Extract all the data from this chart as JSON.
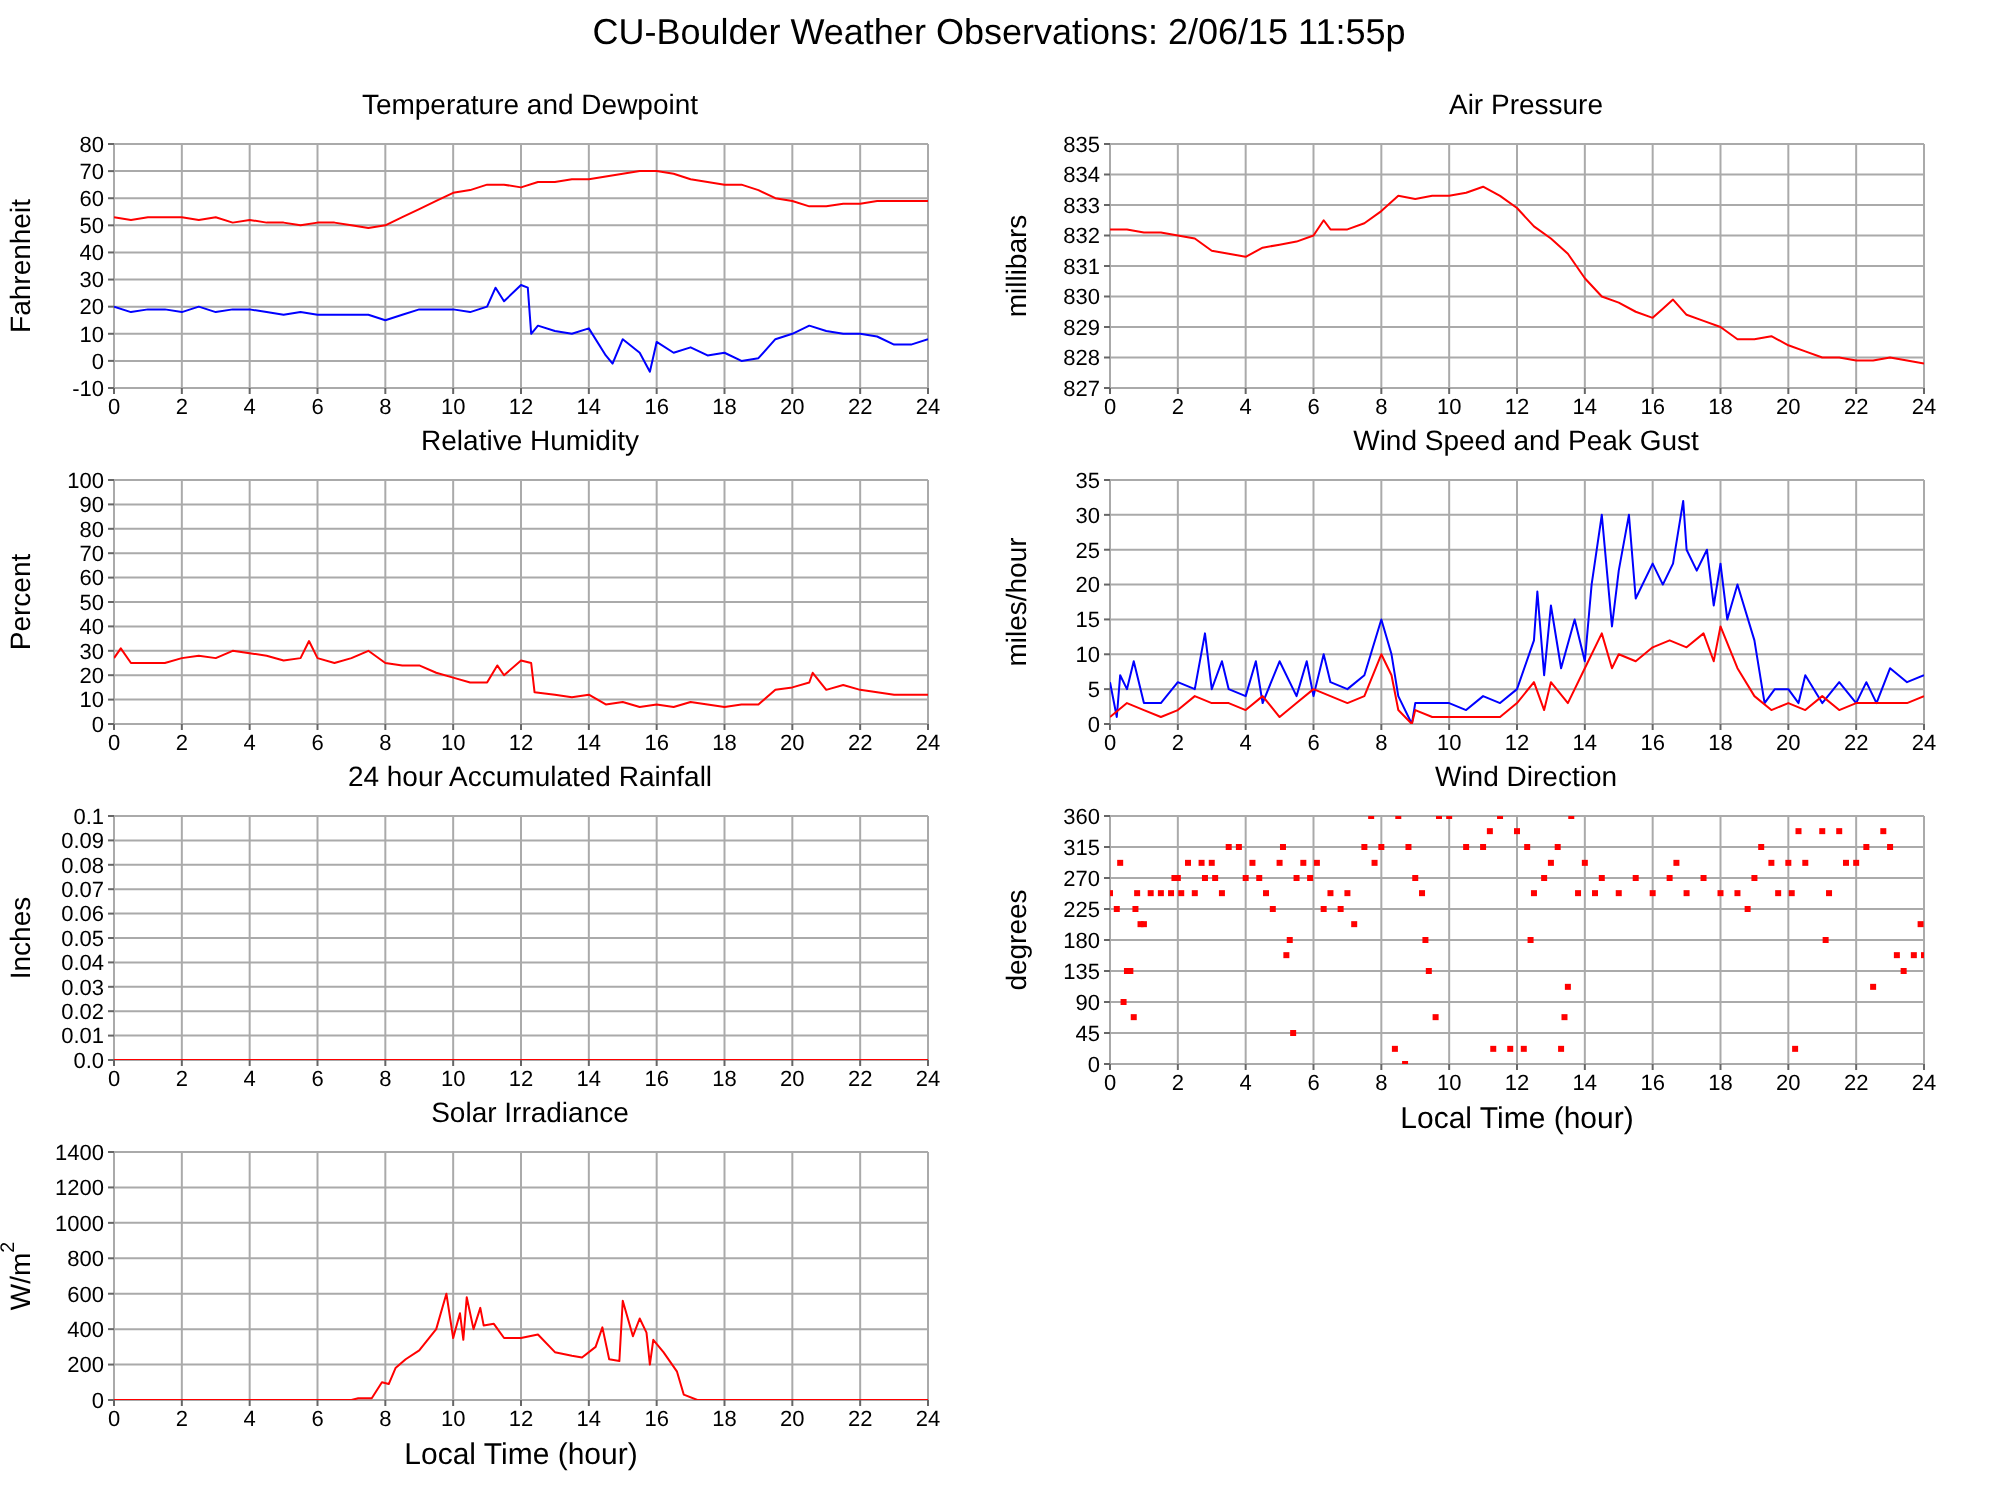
{
  "chart_data": [
    {
      "type": "other",
      "title": "CU-Boulder Weather Observations: 2/06/15 11:55p"
    },
    {
      "type": "line",
      "title": "Temperature and Dewpoint",
      "ylabel": "Fahrenheit",
      "xlim": [
        0,
        24
      ],
      "xticks": [
        0,
        2,
        4,
        6,
        8,
        10,
        12,
        14,
        16,
        18,
        20,
        22,
        24
      ],
      "ylim": [
        -10,
        80
      ],
      "yticks": [
        -10,
        0,
        10,
        20,
        30,
        40,
        50,
        60,
        70,
        80
      ],
      "grid": true,
      "series": [
        {
          "color": "#ff0000",
          "x": [
            0,
            0.5,
            1,
            1.5,
            2,
            2.5,
            3,
            3.5,
            4,
            4.5,
            5,
            5.5,
            6,
            6.5,
            7,
            7.5,
            8,
            8.5,
            9,
            9.5,
            10,
            10.5,
            11,
            11.5,
            12,
            12.5,
            13,
            13.5,
            14,
            14.5,
            15,
            15.5,
            16,
            16.5,
            17,
            17.5,
            18,
            18.5,
            19,
            19.5,
            20,
            20.5,
            21,
            21.5,
            22,
            22.5,
            23,
            23.5,
            24
          ],
          "values": [
            53,
            52,
            53,
            53,
            53,
            52,
            53,
            51,
            52,
            51,
            51,
            50,
            51,
            51,
            50,
            49,
            50,
            53,
            56,
            59,
            62,
            63,
            65,
            65,
            64,
            66,
            66,
            67,
            67,
            68,
            69,
            70,
            70,
            69,
            67,
            66,
            65,
            65,
            63,
            60,
            59,
            57,
            57,
            58,
            58,
            59,
            59,
            59,
            59
          ]
        },
        {
          "color": "#0000ff",
          "x": [
            0,
            0.5,
            1,
            1.5,
            2,
            2.5,
            3,
            3.5,
            4,
            4.5,
            5,
            5.5,
            6,
            6.5,
            7,
            7.5,
            8,
            8.5,
            9,
            9.5,
            10,
            10.5,
            11,
            11.25,
            11.5,
            12,
            12.2,
            12.3,
            12.5,
            13,
            13.5,
            14,
            14.5,
            14.7,
            15,
            15.5,
            15.8,
            16,
            16.5,
            17,
            17.5,
            18,
            18.5,
            19,
            19.5,
            20,
            20.5,
            21,
            21.5,
            22,
            22.5,
            23,
            23.5,
            24
          ],
          "values": [
            20,
            18,
            19,
            19,
            18,
            20,
            18,
            19,
            19,
            18,
            17,
            18,
            17,
            17,
            17,
            17,
            15,
            17,
            19,
            19,
            19,
            18,
            20,
            27,
            22,
            28,
            27,
            10,
            13,
            11,
            10,
            12,
            2,
            -1,
            8,
            3,
            -4,
            7,
            3,
            5,
            2,
            3,
            0,
            1,
            8,
            10,
            13,
            11,
            10,
            10,
            9,
            6,
            6,
            8
          ]
        }
      ]
    },
    {
      "type": "line",
      "title": "Air Pressure",
      "ylabel": "millibars",
      "xlim": [
        0,
        24
      ],
      "xticks": [
        0,
        2,
        4,
        6,
        8,
        10,
        12,
        14,
        16,
        18,
        20,
        22,
        24
      ],
      "ylim": [
        827,
        835
      ],
      "yticks": [
        827,
        828,
        829,
        830,
        831,
        832,
        833,
        834,
        835
      ],
      "grid": true,
      "series": [
        {
          "color": "#ff0000",
          "x": [
            0,
            0.5,
            1,
            1.5,
            2,
            2.5,
            3,
            3.5,
            4,
            4.5,
            5,
            5.5,
            6,
            6.3,
            6.5,
            7,
            7.5,
            8,
            8.5,
            9,
            9.5,
            10,
            10.5,
            11,
            11.5,
            12,
            12.5,
            13,
            13.5,
            14,
            14.5,
            15,
            15.5,
            16,
            16.3,
            16.6,
            17,
            17.5,
            18,
            18.5,
            19,
            19.5,
            20,
            20.5,
            21,
            21.5,
            22,
            22.5,
            23,
            23.5,
            24
          ],
          "values": [
            832.2,
            832.2,
            832.1,
            832.1,
            832.0,
            831.9,
            831.5,
            831.4,
            831.3,
            831.6,
            831.7,
            831.8,
            832.0,
            832.5,
            832.2,
            832.2,
            832.4,
            832.8,
            833.3,
            833.2,
            833.3,
            833.3,
            833.4,
            833.6,
            833.3,
            832.9,
            832.3,
            831.9,
            831.4,
            830.6,
            830.0,
            829.8,
            829.5,
            829.3,
            829.6,
            829.9,
            829.4,
            829.2,
            829.0,
            828.6,
            828.6,
            828.7,
            828.4,
            828.2,
            828.0,
            828.0,
            827.9,
            827.9,
            828.0,
            827.9,
            827.8
          ]
        }
      ]
    },
    {
      "type": "line",
      "title": "Relative Humidity",
      "ylabel": "Percent",
      "xlim": [
        0,
        24
      ],
      "xticks": [
        0,
        2,
        4,
        6,
        8,
        10,
        12,
        14,
        16,
        18,
        20,
        22,
        24
      ],
      "ylim": [
        0,
        100
      ],
      "yticks": [
        0,
        10,
        20,
        30,
        40,
        50,
        60,
        70,
        80,
        90,
        100
      ],
      "grid": true,
      "series": [
        {
          "color": "#ff0000",
          "x": [
            0,
            0.2,
            0.5,
            1,
            1.5,
            2,
            2.5,
            3,
            3.5,
            4,
            4.5,
            5,
            5.5,
            5.75,
            6,
            6.5,
            7,
            7.5,
            8,
            8.5,
            9,
            9.5,
            10,
            10.5,
            11,
            11.3,
            11.5,
            12,
            12.3,
            12.4,
            13,
            13.5,
            14,
            14.5,
            15,
            15.5,
            16,
            16.5,
            17,
            17.5,
            18,
            18.5,
            19,
            19.5,
            20,
            20.5,
            20.6,
            21,
            21.5,
            22,
            22.5,
            23,
            23.5,
            24
          ],
          "values": [
            27,
            31,
            25,
            25,
            25,
            27,
            28,
            27,
            30,
            29,
            28,
            26,
            27,
            34,
            27,
            25,
            27,
            30,
            25,
            24,
            24,
            21,
            19,
            17,
            17,
            24,
            20,
            26,
            25,
            13,
            12,
            11,
            12,
            8,
            9,
            7,
            8,
            7,
            9,
            8,
            7,
            8,
            8,
            14,
            15,
            17,
            21,
            14,
            16,
            14,
            13,
            12,
            12,
            12
          ]
        }
      ]
    },
    {
      "type": "line",
      "title": "Wind Speed and Peak Gust",
      "ylabel": "miles/hour",
      "xlim": [
        0,
        24
      ],
      "xticks": [
        0,
        2,
        4,
        6,
        8,
        10,
        12,
        14,
        16,
        18,
        20,
        22,
        24
      ],
      "ylim": [
        0,
        35
      ],
      "yticks": [
        0,
        5,
        10,
        15,
        20,
        25,
        30,
        35
      ],
      "grid": true,
      "series": [
        {
          "color": "#0000ff",
          "x": [
            0,
            0.2,
            0.3,
            0.5,
            0.7,
            1,
            1.5,
            2,
            2.5,
            2.8,
            3,
            3.3,
            3.5,
            4,
            4.3,
            4.5,
            5,
            5.5,
            5.8,
            6,
            6.3,
            6.5,
            7,
            7.5,
            8,
            8.3,
            8.5,
            8.9,
            9,
            9.5,
            10,
            10.5,
            11,
            11.5,
            12,
            12.5,
            12.6,
            12.8,
            13,
            13.3,
            13.7,
            14,
            14.2,
            14.5,
            14.8,
            15,
            15.3,
            15.5,
            16,
            16.3,
            16.6,
            16.9,
            17,
            17.3,
            17.6,
            17.8,
            18,
            18.2,
            18.5,
            19,
            19.3,
            19.6,
            20,
            20.3,
            20.5,
            21,
            21.5,
            22,
            22.3,
            22.6,
            23,
            23.5,
            24
          ],
          "values": [
            6,
            1,
            7,
            5,
            9,
            3,
            3,
            6,
            5,
            13,
            5,
            9,
            5,
            4,
            9,
            3,
            9,
            4,
            9,
            4,
            10,
            6,
            5,
            7,
            15,
            10,
            4,
            0,
            3,
            3,
            3,
            2,
            4,
            3,
            5,
            12,
            19,
            7,
            17,
            8,
            15,
            9,
            20,
            30,
            14,
            22,
            30,
            18,
            23,
            20,
            23,
            32,
            25,
            22,
            25,
            17,
            23,
            15,
            20,
            12,
            3,
            5,
            5,
            3,
            7,
            3,
            6,
            3,
            6,
            3,
            8,
            6,
            7
          ]
        },
        {
          "color": "#ff0000",
          "x": [
            0,
            0.5,
            1,
            1.5,
            2,
            2.5,
            3,
            3.5,
            4,
            4.5,
            5,
            5.5,
            6,
            6.5,
            7,
            7.5,
            8,
            8.3,
            8.5,
            8.9,
            9,
            9.5,
            10,
            10.5,
            11,
            11.5,
            12,
            12.5,
            12.8,
            13,
            13.5,
            14,
            14.5,
            14.8,
            15,
            15.5,
            16,
            16.5,
            17,
            17.5,
            17.8,
            18,
            18.5,
            19,
            19.5,
            20,
            20.5,
            21,
            21.5,
            22,
            22.5,
            23,
            23.5,
            24
          ],
          "values": [
            1,
            3,
            2,
            1,
            2,
            4,
            3,
            3,
            2,
            4,
            1,
            3,
            5,
            4,
            3,
            4,
            10,
            7,
            2,
            0,
            2,
            1,
            1,
            1,
            1,
            1,
            3,
            6,
            2,
            6,
            3,
            8,
            13,
            8,
            10,
            9,
            11,
            12,
            11,
            13,
            9,
            14,
            8,
            4,
            2,
            3,
            2,
            4,
            2,
            3,
            3,
            3,
            3,
            4
          ]
        }
      ]
    },
    {
      "type": "line",
      "title": "24 hour Accumulated Rainfall",
      "ylabel": "Inches",
      "xlim": [
        0,
        24
      ],
      "xticks": [
        0,
        2,
        4,
        6,
        8,
        10,
        12,
        14,
        16,
        18,
        20,
        22,
        24
      ],
      "ylim": [
        0,
        0.1
      ],
      "yticks": [
        {
          "value": 0,
          "label": "0.0"
        },
        0.01,
        0.02,
        0.03,
        0.04,
        0.05,
        0.06,
        0.07,
        0.08,
        0.09,
        0.1
      ],
      "grid": true,
      "series": [
        {
          "color": "#ff0000",
          "x": [
            0,
            24
          ],
          "values": [
            0,
            0
          ]
        }
      ]
    },
    {
      "type": "scatter",
      "title": "Wind Direction",
      "xlabel": "Local Time (hour)",
      "ylabel": "degrees",
      "xlim": [
        0,
        24
      ],
      "xticks": [
        0,
        2,
        4,
        6,
        8,
        10,
        12,
        14,
        16,
        18,
        20,
        22,
        24
      ],
      "ylim": [
        0,
        360
      ],
      "yticks": [
        0,
        45,
        90,
        135,
        180,
        225,
        270,
        315,
        360
      ],
      "grid": true,
      "marker": "square",
      "series": [
        {
          "color": "#ff0000",
          "x": [
            0,
            0.2,
            0.3,
            0.4,
            0.5,
            0.6,
            0.7,
            0.75,
            0.8,
            0.9,
            1.0,
            1.2,
            1.5,
            1.8,
            1.9,
            2.0,
            2.1,
            2.3,
            2.5,
            2.7,
            2.8,
            3.0,
            3.1,
            3.3,
            3.5,
            3.8,
            4.0,
            4.2,
            4.4,
            4.6,
            4.8,
            5.0,
            5.1,
            5.2,
            5.3,
            5.4,
            5.5,
            5.7,
            5.9,
            6.1,
            6.3,
            6.5,
            6.8,
            7.0,
            7.2,
            7.5,
            7.7,
            7.8,
            8.0,
            8.4,
            8.5,
            8.7,
            8.8,
            9.0,
            9.2,
            9.3,
            9.4,
            9.6,
            9.7,
            10.0,
            10.5,
            11.0,
            11.2,
            11.3,
            11.5,
            11.8,
            12.0,
            12.2,
            12.3,
            12.4,
            12.5,
            12.8,
            13.0,
            13.2,
            13.3,
            13.4,
            13.5,
            13.6,
            13.8,
            14.0,
            14.3,
            14.5,
            15.0,
            15.5,
            16.0,
            16.5,
            16.7,
            17.0,
            17.5,
            18.0,
            18.5,
            18.8,
            19.0,
            19.2,
            19.5,
            19.7,
            20.0,
            20.1,
            20.2,
            20.3,
            20.5,
            21.0,
            21.1,
            21.2,
            21.5,
            21.7,
            22.0,
            22.3,
            22.5,
            22.8,
            23.0,
            23.2,
            23.4,
            23.7,
            23.9,
            24.0
          ],
          "values": [
            248,
            225,
            292,
            90,
            135,
            135,
            68,
            225,
            248,
            203,
            203,
            248,
            248,
            248,
            270,
            270,
            248,
            292,
            248,
            292,
            270,
            292,
            270,
            248,
            315,
            315,
            270,
            292,
            270,
            248,
            225,
            292,
            315,
            158,
            180,
            45,
            270,
            292,
            270,
            292,
            225,
            248,
            225,
            248,
            203,
            315,
            360,
            292,
            315,
            22,
            360,
            0,
            315,
            270,
            248,
            180,
            135,
            68,
            360,
            360,
            315,
            315,
            338,
            22,
            360,
            22,
            338,
            22,
            315,
            180,
            248,
            270,
            292,
            315,
            22,
            68,
            112,
            360,
            248,
            292,
            248,
            270,
            248,
            270,
            248,
            270,
            292,
            248,
            270,
            248,
            248,
            225,
            270,
            315,
            292,
            248,
            292,
            248,
            22,
            338,
            292,
            338,
            180,
            248,
            338,
            292,
            292,
            315,
            112,
            338,
            315,
            158,
            135,
            158,
            203,
            158
          ]
        }
      ]
    },
    {
      "type": "line",
      "title": "Solar Irradiance",
      "xlabel": "Local Time (hour)",
      "ylabel": "W/m$^{2}$",
      "xlim": [
        0,
        24
      ],
      "xticks": [
        0,
        2,
        4,
        6,
        8,
        10,
        12,
        14,
        16,
        18,
        20,
        22,
        24
      ],
      "ylim": [
        0,
        1400
      ],
      "yticks": [
        0,
        200,
        400,
        600,
        800,
        1000,
        1200,
        1400
      ],
      "grid": true,
      "series": [
        {
          "color": "#ff0000",
          "x": [
            0,
            7,
            7.2,
            7.6,
            7.9,
            8.1,
            8.3,
            8.6,
            9,
            9.5,
            9.8,
            10.0,
            10.2,
            10.3,
            10.4,
            10.6,
            10.8,
            10.9,
            11.2,
            11.5,
            12,
            12.5,
            13,
            13.5,
            13.8,
            14.2,
            14.4,
            14.6,
            14.9,
            15.0,
            15.3,
            15.5,
            15.7,
            15.8,
            15.9,
            16.2,
            16.6,
            16.8,
            17.2,
            24
          ],
          "values": [
            0,
            0,
            10,
            10,
            100,
            90,
            180,
            230,
            280,
            400,
            600,
            350,
            490,
            340,
            580,
            400,
            520,
            420,
            430,
            350,
            350,
            370,
            270,
            250,
            240,
            300,
            410,
            230,
            220,
            560,
            360,
            460,
            380,
            200,
            340,
            270,
            160,
            30,
            0,
            0
          ]
        }
      ]
    }
  ]
}
